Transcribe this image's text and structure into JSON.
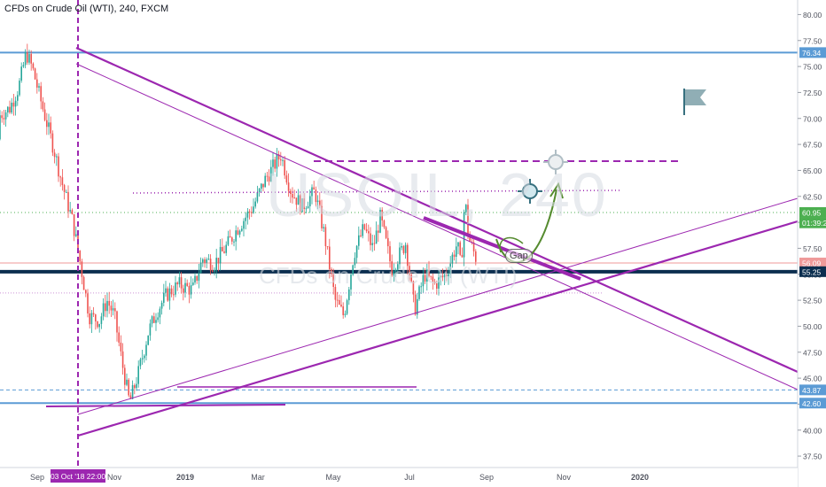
{
  "header": {
    "title": "CFDs on Crude Oil (WTI), 240, FXCM"
  },
  "watermark": {
    "ticker": "USOIL, 240",
    "description": "CFDs on Crude Oil (WTI)"
  },
  "annotations": {
    "gap": "Gap"
  },
  "colors": {
    "up": "#26a69a",
    "down": "#ef5350",
    "trend": "#9c27b0",
    "level": "#5b9bd5",
    "support": "#0b2e4f",
    "arrow": "#558b2f",
    "green_dotted": "#4caf50",
    "red_line": "#ef9a9a"
  },
  "chart_data": {
    "type": "candlestick",
    "title": "CFDs on Crude Oil (WTI), 240, FXCM",
    "xlabel": "",
    "ylabel": "",
    "x_ticks": [
      "Sep",
      "03 Oct '18  22:00",
      "Nov",
      "2019",
      "Mar",
      "May",
      "Jul",
      "Sep",
      "Nov",
      "2020"
    ],
    "y_ticks": [
      "80.00",
      "77.50",
      "75.00",
      "72.50",
      "70.00",
      "67.50",
      "65.00",
      "62.50",
      "60.00",
      "57.50",
      "55.00",
      "52.50",
      "50.00",
      "47.50",
      "45.00",
      "42.50",
      "40.00",
      "37.50"
    ],
    "ylim": [
      36.4,
      81.4
    ],
    "price_labels": [
      {
        "value": 76.34,
        "text": "76.34",
        "color": "#5b9bd5"
      },
      {
        "value": 60.95,
        "text": "60.95",
        "color": "#4caf50"
      },
      {
        "value": 59.95,
        "text": "01:39:25",
        "color": "#4caf50"
      },
      {
        "value": 56.09,
        "text": "56.09",
        "color": "#ef9a9a"
      },
      {
        "value": 55.25,
        "text": "55.25",
        "color": "#0b2e4f"
      },
      {
        "value": 43.87,
        "text": "43.87",
        "color": "#5b9bd5"
      },
      {
        "value": 42.6,
        "text": "42.60",
        "color": "#5b9bd5"
      }
    ],
    "path_points": [
      [
        "2018-08-20",
        68.0
      ],
      [
        "2018-08-28",
        69.5
      ],
      [
        "2018-09-05",
        67.0
      ],
      [
        "2018-09-12",
        70.3
      ],
      [
        "2018-09-20",
        71.0
      ],
      [
        "2018-09-27",
        73.0
      ],
      [
        "2018-10-03",
        76.3
      ],
      [
        "2018-10-08",
        74.8
      ],
      [
        "2018-10-15",
        71.5
      ],
      [
        "2018-10-25",
        67.0
      ],
      [
        "2018-11-01",
        63.5
      ],
      [
        "2018-11-09",
        60.0
      ],
      [
        "2018-11-15",
        56.0
      ],
      [
        "2018-11-22",
        51.0
      ],
      [
        "2018-11-30",
        50.5
      ],
      [
        "2018-12-06",
        52.5
      ],
      [
        "2018-12-12",
        51.0
      ],
      [
        "2018-12-18",
        46.5
      ],
      [
        "2018-12-24",
        42.6
      ],
      [
        "2018-12-31",
        45.5
      ],
      [
        "2019-01-08",
        49.5
      ],
      [
        "2019-01-15",
        51.5
      ],
      [
        "2019-01-22",
        53.0
      ],
      [
        "2019-02-01",
        54.0
      ],
      [
        "2019-02-12",
        53.5
      ],
      [
        "2019-02-20",
        56.5
      ],
      [
        "2019-03-01",
        56.0
      ],
      [
        "2019-03-10",
        57.5
      ],
      [
        "2019-03-20",
        59.5
      ],
      [
        "2019-04-01",
        61.5
      ],
      [
        "2019-04-10",
        64.0
      ],
      [
        "2019-04-23",
        66.5
      ],
      [
        "2019-05-01",
        63.0
      ],
      [
        "2019-05-10",
        61.5
      ],
      [
        "2019-05-20",
        63.0
      ],
      [
        "2019-05-28",
        58.5
      ],
      [
        "2019-06-05",
        52.5
      ],
      [
        "2019-06-12",
        51.0
      ],
      [
        "2019-06-20",
        57.0
      ],
      [
        "2019-06-28",
        59.5
      ],
      [
        "2019-07-05",
        57.5
      ],
      [
        "2019-07-11",
        60.5
      ],
      [
        "2019-07-20",
        55.5
      ],
      [
        "2019-07-31",
        58.0
      ],
      [
        "2019-08-07",
        51.5
      ],
      [
        "2019-08-15",
        55.0
      ],
      [
        "2019-08-23",
        54.0
      ],
      [
        "2019-09-01",
        55.0
      ],
      [
        "2019-09-10",
        58.0
      ],
      [
        "2019-09-13",
        55.5
      ],
      [
        "2019-09-16",
        62.5
      ],
      [
        "2019-09-19",
        58.5
      ],
      [
        "2019-09-25",
        56.5
      ]
    ]
  }
}
